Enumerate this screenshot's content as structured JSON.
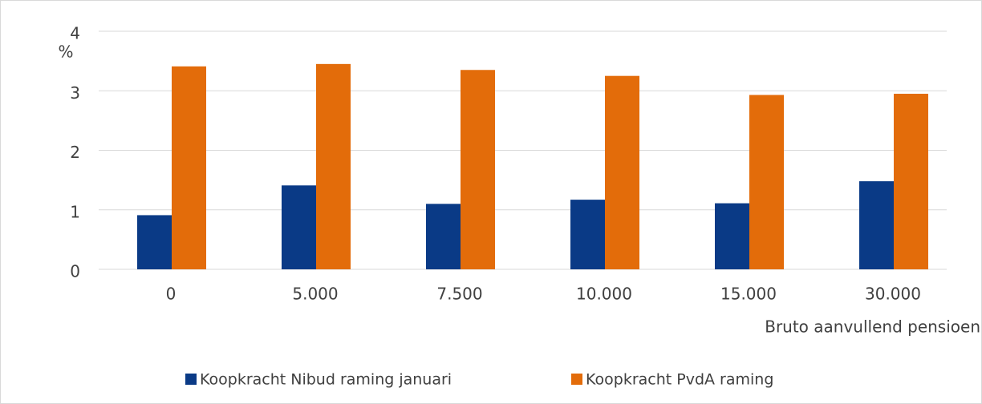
{
  "chart_data": {
    "type": "bar",
    "categories": [
      "0",
      "5.000",
      "7.500",
      "10.000",
      "15.000",
      "30.000"
    ],
    "series": [
      {
        "name": "Koopkracht Nibud raming januari",
        "color": "#0a3a86",
        "values": [
          0.91,
          1.41,
          1.1,
          1.17,
          1.11,
          1.48
        ]
      },
      {
        "name": "Koopkracht PvdA raming",
        "color": "#e36c0a",
        "values": [
          3.41,
          3.45,
          3.35,
          3.25,
          2.93,
          2.95
        ]
      }
    ],
    "y_unit": "%",
    "x_label": "Bruto aanvullend pensioen",
    "ylim": [
      0,
      4
    ],
    "yticks": [
      0,
      1,
      2,
      3,
      4
    ],
    "grid": true
  }
}
